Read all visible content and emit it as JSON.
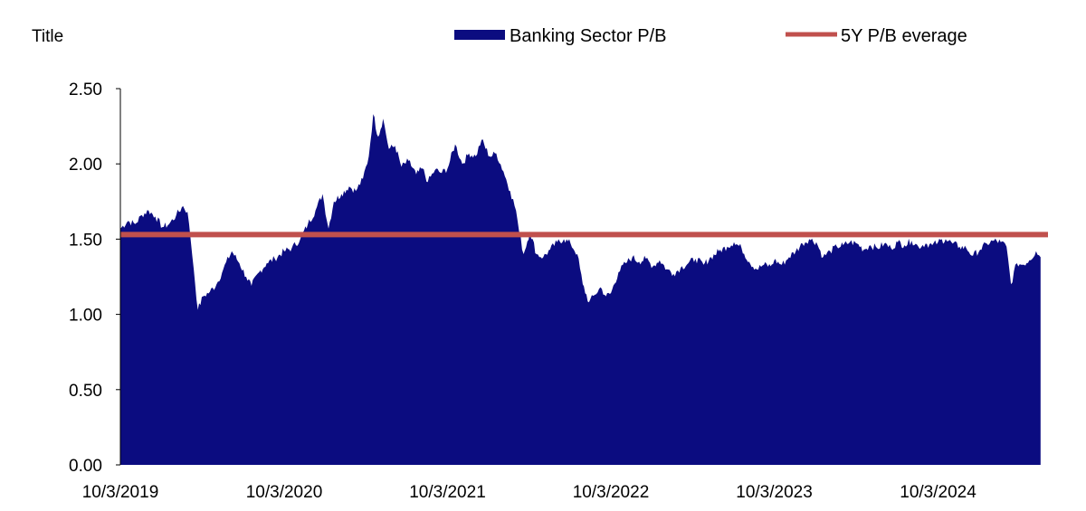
{
  "chart_data": {
    "type": "area",
    "title": "Title",
    "xlabel": "",
    "ylabel": "",
    "ylim": [
      0,
      2.5
    ],
    "y_ticks": [
      "0.00",
      "0.50",
      "1.00",
      "1.50",
      "2.00",
      "2.50"
    ],
    "x_ticks": [
      "10/3/2019",
      "10/3/2020",
      "10/3/2021",
      "10/3/2022",
      "10/3/2023",
      "10/3/2024"
    ],
    "x_tick_dates": [
      "2019-10-03",
      "2020-10-03",
      "2021-10-03",
      "2022-10-03",
      "2023-10-03",
      "2024-10-03"
    ],
    "x_range": [
      "2019-10-03",
      "2025-05-20"
    ],
    "grid": false,
    "legend_position": "top",
    "series": [
      {
        "name": "Banking Sector P/B",
        "kind": "area",
        "color": "#0b0c80",
        "points": [
          [
            "2019-10-03",
            1.57
          ],
          [
            "2019-10-20",
            1.62
          ],
          [
            "2019-11-05",
            1.6
          ],
          [
            "2019-11-20",
            1.66
          ],
          [
            "2019-12-05",
            1.69
          ],
          [
            "2019-12-20",
            1.65
          ],
          [
            "2020-01-05",
            1.58
          ],
          [
            "2020-01-20",
            1.6
          ],
          [
            "2020-02-05",
            1.66
          ],
          [
            "2020-02-20",
            1.72
          ],
          [
            "2020-03-01",
            1.68
          ],
          [
            "2020-03-08",
            1.5
          ],
          [
            "2020-03-15",
            1.3
          ],
          [
            "2020-03-24",
            1.03
          ],
          [
            "2020-04-05",
            1.12
          ],
          [
            "2020-04-20",
            1.15
          ],
          [
            "2020-05-05",
            1.2
          ],
          [
            "2020-05-20",
            1.3
          ],
          [
            "2020-06-08",
            1.42
          ],
          [
            "2020-06-25",
            1.34
          ],
          [
            "2020-07-10",
            1.25
          ],
          [
            "2020-07-22",
            1.19
          ],
          [
            "2020-08-08",
            1.28
          ],
          [
            "2020-08-25",
            1.34
          ],
          [
            "2020-09-12",
            1.37
          ],
          [
            "2020-10-03",
            1.42
          ],
          [
            "2020-10-20",
            1.44
          ],
          [
            "2020-11-08",
            1.5
          ],
          [
            "2020-11-25",
            1.6
          ],
          [
            "2020-12-12",
            1.69
          ],
          [
            "2020-12-28",
            1.8
          ],
          [
            "2021-01-10",
            1.57
          ],
          [
            "2021-01-22",
            1.75
          ],
          [
            "2021-02-08",
            1.8
          ],
          [
            "2021-02-25",
            1.85
          ],
          [
            "2021-03-12",
            1.82
          ],
          [
            "2021-03-28",
            1.9
          ],
          [
            "2021-04-10",
            2.05
          ],
          [
            "2021-04-20",
            2.33
          ],
          [
            "2021-05-01",
            2.18
          ],
          [
            "2021-05-12",
            2.3
          ],
          [
            "2021-05-25",
            2.1
          ],
          [
            "2021-06-08",
            2.12
          ],
          [
            "2021-06-22",
            1.98
          ],
          [
            "2021-07-08",
            2.02
          ],
          [
            "2021-07-25",
            1.93
          ],
          [
            "2021-08-08",
            1.97
          ],
          [
            "2021-08-20",
            1.88
          ],
          [
            "2021-09-05",
            1.96
          ],
          [
            "2021-09-20",
            1.94
          ],
          [
            "2021-10-03",
            1.97
          ],
          [
            "2021-10-20",
            2.13
          ],
          [
            "2021-11-05",
            2.0
          ],
          [
            "2021-11-20",
            2.07
          ],
          [
            "2021-12-05",
            2.05
          ],
          [
            "2021-12-18",
            2.16
          ],
          [
            "2022-01-05",
            2.05
          ],
          [
            "2022-01-20",
            2.07
          ],
          [
            "2022-02-05",
            1.95
          ],
          [
            "2022-02-20",
            1.82
          ],
          [
            "2022-03-05",
            1.69
          ],
          [
            "2022-03-12",
            1.55
          ],
          [
            "2022-03-22",
            1.4
          ],
          [
            "2022-04-05",
            1.55
          ],
          [
            "2022-04-20",
            1.4
          ],
          [
            "2022-05-05",
            1.38
          ],
          [
            "2022-05-20",
            1.43
          ],
          [
            "2022-06-05",
            1.48
          ],
          [
            "2022-06-20",
            1.5
          ],
          [
            "2022-07-05",
            1.47
          ],
          [
            "2022-07-20",
            1.4
          ],
          [
            "2022-08-01",
            1.2
          ],
          [
            "2022-08-15",
            1.08
          ],
          [
            "2022-08-28",
            1.13
          ],
          [
            "2022-09-10",
            1.18
          ],
          [
            "2022-09-22",
            1.12
          ],
          [
            "2022-10-03",
            1.14
          ],
          [
            "2022-10-20",
            1.28
          ],
          [
            "2022-11-05",
            1.34
          ],
          [
            "2022-11-20",
            1.38
          ],
          [
            "2022-12-05",
            1.35
          ],
          [
            "2022-12-20",
            1.37
          ],
          [
            "2023-01-05",
            1.32
          ],
          [
            "2023-01-20",
            1.36
          ],
          [
            "2023-02-05",
            1.3
          ],
          [
            "2023-02-20",
            1.27
          ],
          [
            "2023-03-08",
            1.31
          ],
          [
            "2023-03-25",
            1.34
          ],
          [
            "2023-04-10",
            1.37
          ],
          [
            "2023-04-28",
            1.33
          ],
          [
            "2023-05-15",
            1.38
          ],
          [
            "2023-06-01",
            1.42
          ],
          [
            "2023-06-20",
            1.45
          ],
          [
            "2023-07-05",
            1.48
          ],
          [
            "2023-07-22",
            1.44
          ],
          [
            "2023-08-08",
            1.35
          ],
          [
            "2023-08-25",
            1.3
          ],
          [
            "2023-09-10",
            1.33
          ],
          [
            "2023-09-25",
            1.32
          ],
          [
            "2023-10-03",
            1.36
          ],
          [
            "2023-10-20",
            1.33
          ],
          [
            "2023-11-05",
            1.38
          ],
          [
            "2023-11-20",
            1.42
          ],
          [
            "2023-12-05",
            1.47
          ],
          [
            "2023-12-20",
            1.5
          ],
          [
            "2024-01-05",
            1.48
          ],
          [
            "2024-01-20",
            1.38
          ],
          [
            "2024-02-05",
            1.42
          ],
          [
            "2024-02-20",
            1.45
          ],
          [
            "2024-03-05",
            1.46
          ],
          [
            "2024-03-20",
            1.48
          ],
          [
            "2024-04-05",
            1.47
          ],
          [
            "2024-04-20",
            1.43
          ],
          [
            "2024-05-05",
            1.46
          ],
          [
            "2024-05-20",
            1.44
          ],
          [
            "2024-06-05",
            1.47
          ],
          [
            "2024-06-20",
            1.44
          ],
          [
            "2024-07-05",
            1.48
          ],
          [
            "2024-07-20",
            1.46
          ],
          [
            "2024-08-05",
            1.49
          ],
          [
            "2024-08-20",
            1.45
          ],
          [
            "2024-09-05",
            1.47
          ],
          [
            "2024-09-20",
            1.46
          ],
          [
            "2024-10-03",
            1.48
          ],
          [
            "2024-10-20",
            1.5
          ],
          [
            "2024-11-05",
            1.47
          ],
          [
            "2024-11-20",
            1.45
          ],
          [
            "2024-12-05",
            1.44
          ],
          [
            "2024-12-20",
            1.39
          ],
          [
            "2025-01-05",
            1.43
          ],
          [
            "2025-01-20",
            1.47
          ],
          [
            "2025-02-05",
            1.49
          ],
          [
            "2025-02-20",
            1.48
          ],
          [
            "2025-03-05",
            1.45
          ],
          [
            "2025-03-15",
            1.2
          ],
          [
            "2025-03-28",
            1.34
          ],
          [
            "2025-04-10",
            1.33
          ],
          [
            "2025-04-25",
            1.36
          ],
          [
            "2025-05-10",
            1.42
          ],
          [
            "2025-05-20",
            1.38
          ]
        ]
      },
      {
        "name": "5Y P/B everage",
        "kind": "line",
        "color": "#c0504d",
        "value": 1.53
      }
    ]
  }
}
